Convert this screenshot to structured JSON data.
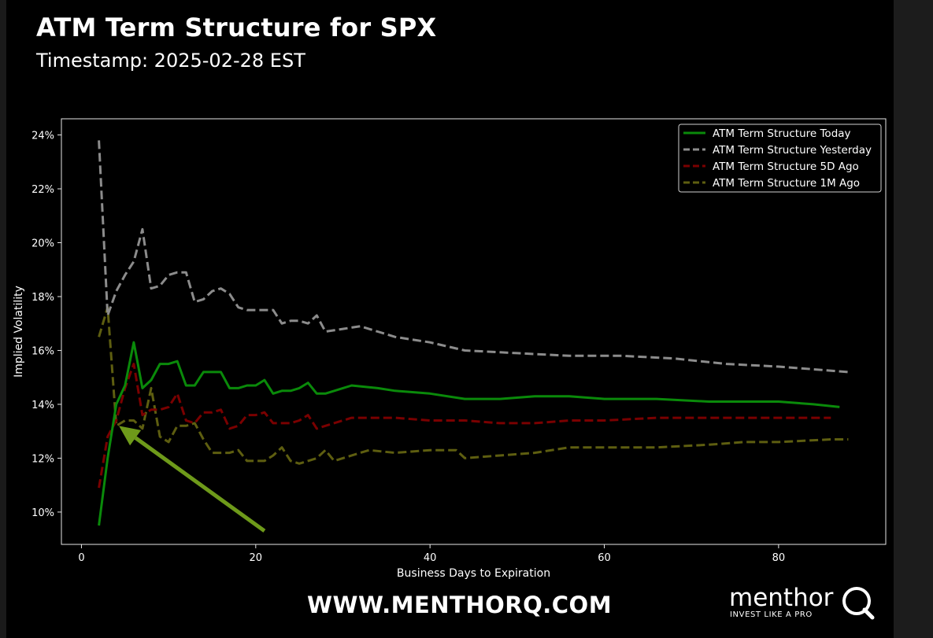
{
  "header": {
    "title": "ATM Term Structure for SPX",
    "subtitle": "Timestamp: 2025-02-28 EST"
  },
  "footer": {
    "website": "WWW.MENTHORQ.COM",
    "logo_word": "menthor",
    "logo_tagline": "INVEST LIKE A PRO",
    "logo_icon": "q-magnifier-icon"
  },
  "colors": {
    "background": "#000000",
    "today": "#0a8a0a",
    "yesterday": "#8c8c8c",
    "five_day": "#7a0000",
    "one_month": "#5e5e10",
    "arrow": "#6e9a1a"
  },
  "chart_data": {
    "type": "line",
    "xlabel": "Business Days to Expiration",
    "ylabel": "Implied Volatility",
    "xlim": [
      -2.3,
      92.3
    ],
    "ylim": [
      8.8,
      24.6
    ],
    "xticks": [
      0,
      20,
      40,
      60,
      80
    ],
    "yticks": [
      10,
      12,
      14,
      16,
      18,
      20,
      22,
      24
    ],
    "ytick_labels": [
      "10%",
      "12%",
      "14%",
      "16%",
      "18%",
      "20%",
      "22%",
      "24%"
    ],
    "grid": false,
    "legend": "top-right",
    "series": [
      {
        "name": "ATM Term Structure Today",
        "style": "solid",
        "color": "#0a8a0a",
        "points": [
          [
            2,
            9.5
          ],
          [
            3,
            12.0
          ],
          [
            4,
            14.0
          ],
          [
            5,
            14.7
          ],
          [
            6,
            16.3
          ],
          [
            7,
            14.6
          ],
          [
            8,
            14.9
          ],
          [
            9,
            15.5
          ],
          [
            10,
            15.5
          ],
          [
            11,
            15.6
          ],
          [
            12,
            14.7
          ],
          [
            13,
            14.7
          ],
          [
            14,
            15.2
          ],
          [
            15,
            15.2
          ],
          [
            16,
            15.2
          ],
          [
            17,
            14.6
          ],
          [
            18,
            14.6
          ],
          [
            19,
            14.7
          ],
          [
            20,
            14.7
          ],
          [
            21,
            14.9
          ],
          [
            22,
            14.4
          ],
          [
            23,
            14.5
          ],
          [
            24,
            14.5
          ],
          [
            25,
            14.6
          ],
          [
            26,
            14.8
          ],
          [
            27,
            14.4
          ],
          [
            28,
            14.4
          ],
          [
            30,
            14.6
          ],
          [
            31,
            14.7
          ],
          [
            34,
            14.6
          ],
          [
            36,
            14.5
          ],
          [
            40,
            14.4
          ],
          [
            44,
            14.2
          ],
          [
            48,
            14.2
          ],
          [
            52,
            14.3
          ],
          [
            56,
            14.3
          ],
          [
            60,
            14.2
          ],
          [
            66,
            14.2
          ],
          [
            72,
            14.1
          ],
          [
            80,
            14.1
          ],
          [
            84,
            14.0
          ],
          [
            87,
            13.9
          ]
        ]
      },
      {
        "name": "ATM Term Structure Yesterday",
        "style": "dashed",
        "color": "#8c8c8c",
        "points": [
          [
            2,
            23.8
          ],
          [
            3,
            17.3
          ],
          [
            4,
            18.2
          ],
          [
            5,
            18.8
          ],
          [
            6,
            19.3
          ],
          [
            7,
            20.5
          ],
          [
            8,
            18.3
          ],
          [
            9,
            18.4
          ],
          [
            10,
            18.8
          ],
          [
            11,
            18.9
          ],
          [
            12,
            18.9
          ],
          [
            13,
            17.8
          ],
          [
            14,
            17.9
          ],
          [
            15,
            18.2
          ],
          [
            16,
            18.3
          ],
          [
            17,
            18.1
          ],
          [
            18,
            17.6
          ],
          [
            19,
            17.5
          ],
          [
            21,
            17.5
          ],
          [
            22,
            17.5
          ],
          [
            23,
            17.0
          ],
          [
            24,
            17.1
          ],
          [
            25,
            17.1
          ],
          [
            26,
            17.0
          ],
          [
            27,
            17.3
          ],
          [
            28,
            16.7
          ],
          [
            30,
            16.8
          ],
          [
            32,
            16.9
          ],
          [
            34,
            16.7
          ],
          [
            36,
            16.5
          ],
          [
            40,
            16.3
          ],
          [
            44,
            16.0
          ],
          [
            50,
            15.9
          ],
          [
            56,
            15.8
          ],
          [
            62,
            15.8
          ],
          [
            68,
            15.7
          ],
          [
            74,
            15.5
          ],
          [
            80,
            15.4
          ],
          [
            84,
            15.3
          ],
          [
            88,
            15.2
          ]
        ]
      },
      {
        "name": "ATM Term Structure 5D Ago",
        "style": "dashed",
        "color": "#7a0000",
        "points": [
          [
            2,
            10.9
          ],
          [
            3,
            12.8
          ],
          [
            4,
            13.4
          ],
          [
            5,
            14.6
          ],
          [
            6,
            15.5
          ],
          [
            7,
            13.6
          ],
          [
            8,
            13.8
          ],
          [
            9,
            13.8
          ],
          [
            10,
            13.9
          ],
          [
            11,
            14.4
          ],
          [
            12,
            13.4
          ],
          [
            13,
            13.3
          ],
          [
            14,
            13.7
          ],
          [
            15,
            13.7
          ],
          [
            16,
            13.8
          ],
          [
            17,
            13.1
          ],
          [
            18,
            13.2
          ],
          [
            19,
            13.6
          ],
          [
            20,
            13.6
          ],
          [
            21,
            13.7
          ],
          [
            22,
            13.3
          ],
          [
            23,
            13.3
          ],
          [
            24,
            13.3
          ],
          [
            25,
            13.4
          ],
          [
            26,
            13.6
          ],
          [
            27,
            13.1
          ],
          [
            28,
            13.2
          ],
          [
            30,
            13.4
          ],
          [
            31,
            13.5
          ],
          [
            36,
            13.5
          ],
          [
            40,
            13.4
          ],
          [
            44,
            13.4
          ],
          [
            48,
            13.3
          ],
          [
            52,
            13.3
          ],
          [
            56,
            13.4
          ],
          [
            60,
            13.4
          ],
          [
            66,
            13.5
          ],
          [
            72,
            13.5
          ],
          [
            80,
            13.5
          ],
          [
            86,
            13.5
          ]
        ]
      },
      {
        "name": "ATM Term Structure 1M Ago",
        "style": "dashed",
        "color": "#5e5e10",
        "points": [
          [
            2,
            16.5
          ],
          [
            3,
            17.6
          ],
          [
            4,
            13.2
          ],
          [
            5,
            13.4
          ],
          [
            6,
            13.4
          ],
          [
            7,
            13.1
          ],
          [
            8,
            14.6
          ],
          [
            9,
            12.8
          ],
          [
            10,
            12.6
          ],
          [
            11,
            13.2
          ],
          [
            12,
            13.2
          ],
          [
            13,
            13.3
          ],
          [
            14,
            12.7
          ],
          [
            15,
            12.2
          ],
          [
            16,
            12.2
          ],
          [
            17,
            12.2
          ],
          [
            18,
            12.3
          ],
          [
            19,
            11.9
          ],
          [
            20,
            11.9
          ],
          [
            21,
            11.9
          ],
          [
            22,
            12.1
          ],
          [
            23,
            12.4
          ],
          [
            24,
            11.9
          ],
          [
            25,
            11.8
          ],
          [
            26,
            11.9
          ],
          [
            27,
            12.0
          ],
          [
            28,
            12.3
          ],
          [
            29,
            11.9
          ],
          [
            30,
            12.0
          ],
          [
            32,
            12.2
          ],
          [
            33,
            12.3
          ],
          [
            36,
            12.2
          ],
          [
            40,
            12.3
          ],
          [
            43,
            12.3
          ],
          [
            44,
            12.0
          ],
          [
            48,
            12.1
          ],
          [
            52,
            12.2
          ],
          [
            56,
            12.4
          ],
          [
            60,
            12.4
          ],
          [
            66,
            12.4
          ],
          [
            72,
            12.5
          ],
          [
            76,
            12.6
          ],
          [
            80,
            12.6
          ],
          [
            86,
            12.7
          ],
          [
            88,
            12.7
          ]
        ]
      }
    ],
    "annotation_arrow": {
      "from": [
        21,
        9.3
      ],
      "to": [
        4.3,
        13.2
      ]
    }
  }
}
